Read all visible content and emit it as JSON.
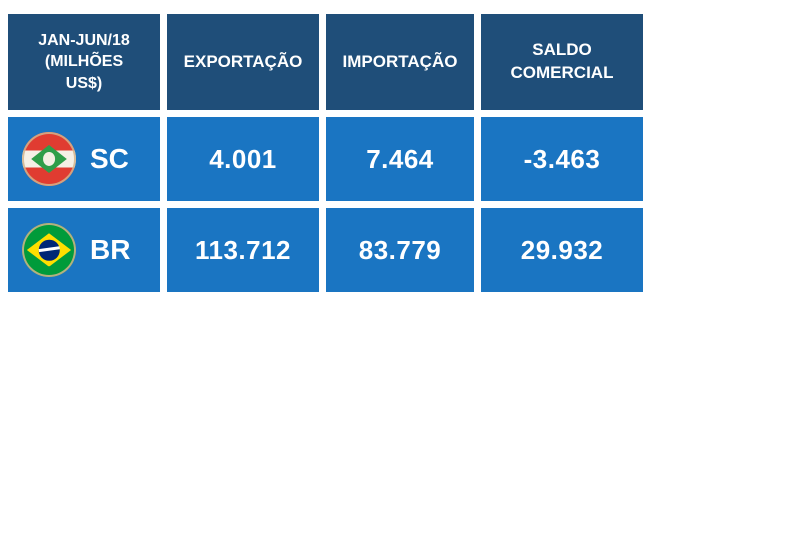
{
  "table": {
    "corner_label": "JAN-JUN/18\n(MILHÕES\nUS$)",
    "headers": {
      "exportacao": "EXPORTAÇÃO",
      "importacao": "IMPORTAÇÃO",
      "saldo": "SALDO COMERCIAL"
    },
    "rows": [
      {
        "label": "SC",
        "flag": "sc-flag",
        "exportacao": "4.001",
        "importacao": "7.464",
        "saldo": "-3.463"
      },
      {
        "label": "BR",
        "flag": "br-flag",
        "exportacao": "113.712",
        "importacao": "83.779",
        "saldo": "29.932"
      }
    ],
    "colors": {
      "header_bg": "#1f4e79",
      "row_bg": "#1a75c2",
      "text": "#ffffff",
      "background": "#ffffff"
    }
  },
  "chart_data": {
    "type": "table",
    "title": "JAN-JUN/18 (MILHÕES US$)",
    "columns": [
      "EXPORTAÇÃO",
      "IMPORTAÇÃO",
      "SALDO COMERCIAL"
    ],
    "rows": [
      {
        "label": "SC",
        "values": [
          4001,
          7464,
          -3463
        ],
        "display": [
          "4.001",
          "7.464",
          "-3.463"
        ]
      },
      {
        "label": "BR",
        "values": [
          113712,
          83779,
          29932
        ],
        "display": [
          "113.712",
          "83.779",
          "29.932"
        ]
      }
    ],
    "units": "milhões US$ (Brazilian thousands separator: 4.001 = 4,001)",
    "legend_position": "none",
    "grid": false
  }
}
